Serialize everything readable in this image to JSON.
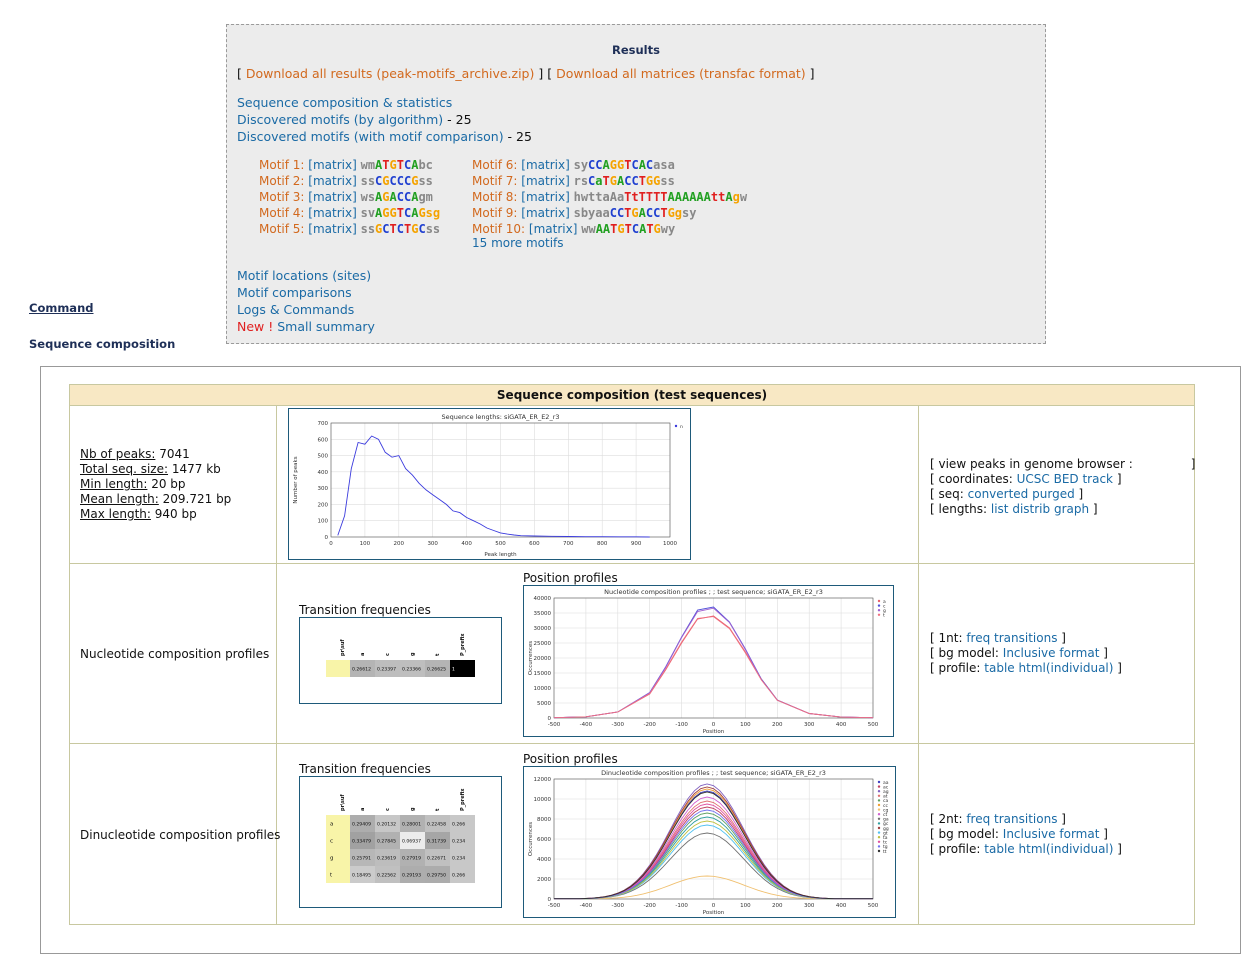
{
  "results": {
    "title": "Results",
    "download_all": "Download all results (peak-motifs_archive.zip)",
    "download_matrices": "Download all matrices (transfac format)",
    "seq_comp": "Sequence composition & statistics",
    "disc_algo": "Discovered motifs (by algorithm)",
    "disc_algo_count": "25",
    "disc_cmp": "Discovered motifs (with motif comparison)",
    "disc_cmp_count": "25",
    "motif_locations": "Motif locations (sites)",
    "motif_comparisons": "Motif comparisons",
    "logs": "Logs & Commands",
    "new_label": "New !",
    "small_summary": "Small summary",
    "more_motifs": "15 more motifs",
    "motifs_left": [
      {
        "label": "Motif 1:",
        "matrix": "[matrix]",
        "seq": [
          [
            "x",
            "wm"
          ],
          [
            "A",
            "A"
          ],
          [
            "T",
            "T"
          ],
          [
            "G",
            "G"
          ],
          [
            "T",
            "T"
          ],
          [
            "C",
            "C"
          ],
          [
            "A",
            "A"
          ],
          [
            "x",
            "bc"
          ]
        ]
      },
      {
        "label": "Motif 2:",
        "matrix": "[matrix]",
        "seq": [
          [
            "x",
            "ss"
          ],
          [
            "C",
            "C"
          ],
          [
            "G",
            "G"
          ],
          [
            "C",
            "C"
          ],
          [
            "C",
            "C"
          ],
          [
            "C",
            "C"
          ],
          [
            "G",
            "G"
          ],
          [
            "x",
            "ss"
          ]
        ]
      },
      {
        "label": "Motif 3:",
        "matrix": "[matrix]",
        "seq": [
          [
            "x",
            "ws"
          ],
          [
            "A",
            "A"
          ],
          [
            "G",
            "G"
          ],
          [
            "A",
            "A"
          ],
          [
            "C",
            "C"
          ],
          [
            "C",
            "C"
          ],
          [
            "A",
            "A"
          ],
          [
            "x",
            "gm"
          ]
        ]
      },
      {
        "label": "Motif 4:",
        "matrix": "[matrix]",
        "seq": [
          [
            "x",
            "sv"
          ],
          [
            "A",
            "A"
          ],
          [
            "G",
            "G"
          ],
          [
            "G",
            "G"
          ],
          [
            "T",
            "T"
          ],
          [
            "C",
            "C"
          ],
          [
            "A",
            "A"
          ],
          [
            "G",
            "Gsg"
          ]
        ]
      },
      {
        "label": "Motif 5:",
        "matrix": "[matrix]",
        "seq": [
          [
            "x",
            "ss"
          ],
          [
            "G",
            "G"
          ],
          [
            "C",
            "C"
          ],
          [
            "T",
            "T"
          ],
          [
            "C",
            "C"
          ],
          [
            "T",
            "T"
          ],
          [
            "G",
            "G"
          ],
          [
            "C",
            "C"
          ],
          [
            "x",
            "ss"
          ]
        ]
      }
    ],
    "motifs_right": [
      {
        "label": "Motif 6:",
        "matrix": "[matrix]",
        "seq": [
          [
            "x",
            "sy"
          ],
          [
            "C",
            "C"
          ],
          [
            "C",
            "C"
          ],
          [
            "A",
            "A"
          ],
          [
            "G",
            "G"
          ],
          [
            "G",
            "G"
          ],
          [
            "T",
            "T"
          ],
          [
            "C",
            "C"
          ],
          [
            "A",
            "A"
          ],
          [
            "C",
            "C"
          ],
          [
            "x",
            "asa"
          ]
        ]
      },
      {
        "label": "Motif 7:",
        "matrix": "[matrix]",
        "seq": [
          [
            "x",
            "rs"
          ],
          [
            "C",
            "C"
          ],
          [
            "A",
            "a"
          ],
          [
            "T",
            "T"
          ],
          [
            "G",
            "G"
          ],
          [
            "A",
            "A"
          ],
          [
            "C",
            "C"
          ],
          [
            "C",
            "C"
          ],
          [
            "T",
            "T"
          ],
          [
            "G",
            "GG"
          ],
          [
            "x",
            "ss"
          ]
        ]
      },
      {
        "label": "Motif 8:",
        "matrix": "[matrix]",
        "seq": [
          [
            "x",
            "hwttaAa"
          ],
          [
            "T",
            "TtTTTT"
          ],
          [
            "A",
            "AAAAAA"
          ],
          [
            "T",
            "tt"
          ],
          [
            "A",
            "A"
          ],
          [
            "G",
            "g"
          ],
          [
            "x",
            "w"
          ]
        ]
      },
      {
        "label": "Motif 9:",
        "matrix": "[matrix]",
        "seq": [
          [
            "x",
            "sbyaa"
          ],
          [
            "C",
            "CC"
          ],
          [
            "T",
            "T"
          ],
          [
            "G",
            "G"
          ],
          [
            "A",
            "A"
          ],
          [
            "C",
            "CC"
          ],
          [
            "T",
            "T"
          ],
          [
            "G",
            "Gg"
          ],
          [
            "x",
            "sy"
          ]
        ]
      },
      {
        "label": "Motif 10:",
        "matrix": "[matrix]",
        "seq": [
          [
            "x",
            "ww"
          ],
          [
            "A",
            "AA"
          ],
          [
            "T",
            "T"
          ],
          [
            "G",
            "G"
          ],
          [
            "T",
            "T"
          ],
          [
            "C",
            "C"
          ],
          [
            "A",
            "A"
          ],
          [
            "T",
            "T"
          ],
          [
            "G",
            "G"
          ],
          [
            "x",
            "wy"
          ]
        ]
      }
    ]
  },
  "side": {
    "command": "Command",
    "seqcomp": "Sequence composition"
  },
  "table": {
    "header": "Sequence composition (test sequences)",
    "stats": [
      {
        "k": "Nb of peaks:",
        "v": " 7041"
      },
      {
        "k": "Total seq. size:",
        "v": " 1477 kb"
      },
      {
        "k": "Min length:",
        "v": " 20 bp"
      },
      {
        "k": "Mean length:",
        "v": " 209.721 bp"
      },
      {
        "k": "Max length:",
        "v": " 940 bp"
      }
    ],
    "row1_links": {
      "l1_pre": "[ view peaks in genome browser :",
      "l1_post": "]",
      "l2_pre": "[ coordinates:",
      "l2_link": "UCSC BED track",
      "l2_post": "]",
      "l3_pre": "[ seq:",
      "l3_link1": "converted",
      "l3_link2": "purged",
      "l3_post": "]",
      "l4_pre": "[ lengths:",
      "l4_link1": "list",
      "l4_link2": "distrib",
      "l4_link3": "graph",
      "l4_post": "]"
    },
    "nuc_label": "Nucleotide composition profiles",
    "dinuc_label": "Dinucleotide composition profiles",
    "trans_freq": "Transition frequencies",
    "pos_profiles": "Position profiles",
    "nuc_links": {
      "l1_pre": "[ 1nt:",
      "l1_link1": "freq",
      "l1_link2": "transitions",
      "l1_post": "]",
      "l2_pre": "[ bg model:",
      "l2_link1": "Inclusive",
      "l2_link2": "format",
      "l2_post": "]",
      "l3_pre": "[ profile:",
      "l3_link1": "table",
      "l3_link2": "html(individual)",
      "l3_post": "]"
    },
    "dinuc_links": {
      "l1_pre": "[ 2nt:",
      "l1_link1": "freq",
      "l1_link2": "transitions",
      "l1_post": "]",
      "l2_pre": "[ bg model:",
      "l2_link1": "Inclusive",
      "l2_link2": "format",
      "l2_post": "]",
      "l3_pre": "[ profile:",
      "l3_link1": "table",
      "l3_link2": "html(individual)",
      "l3_post": "]"
    },
    "nuc_heat": {
      "cols": [
        "a",
        "c",
        "g",
        "t",
        "P_prefix"
      ],
      "corner": "pr\\suf",
      "rows": [
        {
          "label": "",
          "vals": [
            "0.26612",
            "0.23397",
            "0.23366",
            "0.26625",
            "1"
          ]
        }
      ]
    },
    "dinuc_heat": {
      "cols": [
        "a",
        "c",
        "g",
        "t",
        "P_prefix"
      ],
      "corner": "pr\\suf",
      "rows": [
        {
          "label": "a",
          "vals": [
            "0.29409",
            "0.20132",
            "0.28001",
            "0.22458",
            "0.266"
          ]
        },
        {
          "label": "c",
          "vals": [
            "0.33479",
            "0.27845",
            "0.06937",
            "0.31739",
            "0.234"
          ]
        },
        {
          "label": "g",
          "vals": [
            "0.25791",
            "0.23619",
            "0.27919",
            "0.22671",
            "0.234"
          ]
        },
        {
          "label": "t",
          "vals": [
            "0.18495",
            "0.22562",
            "0.29193",
            "0.29750",
            "0.266"
          ]
        }
      ]
    }
  },
  "chart_data": [
    {
      "type": "line",
      "title": "Sequence lengths: siGATA_ER_E2_r3",
      "xlabel": "Peak length",
      "ylabel": "Number of peaks",
      "xlim": [
        0,
        1000
      ],
      "ylim": [
        0,
        700
      ],
      "xticks": [
        0,
        100,
        200,
        300,
        400,
        500,
        600,
        700,
        800,
        900,
        1000
      ],
      "yticks": [
        0,
        100,
        200,
        300,
        400,
        500,
        600,
        700
      ],
      "grid": true,
      "legend": "top-right",
      "series": [
        {
          "name": "n",
          "color": "#3b3bdd",
          "x": [
            20,
            40,
            60,
            80,
            100,
            120,
            140,
            160,
            180,
            200,
            220,
            240,
            260,
            280,
            300,
            320,
            340,
            360,
            380,
            400,
            420,
            440,
            460,
            480,
            500,
            520,
            540,
            560,
            600,
            650,
            700,
            750,
            800,
            850,
            900,
            940
          ],
          "y": [
            10,
            130,
            420,
            580,
            570,
            620,
            600,
            520,
            490,
            500,
            420,
            380,
            330,
            290,
            260,
            230,
            200,
            160,
            150,
            120,
            100,
            80,
            55,
            40,
            25,
            18,
            12,
            8,
            6,
            4,
            3,
            2,
            2,
            1,
            1,
            0
          ]
        }
      ]
    },
    {
      "type": "line",
      "title": "Nucleotide composition profiles ; ; test sequence; siGATA_ER_E2_r3",
      "xlabel": "Position",
      "ylabel": "Occurrences",
      "xlim": [
        -500,
        500
      ],
      "ylim": [
        0,
        40000
      ],
      "xticks": [
        -500,
        -400,
        -300,
        -200,
        -100,
        0,
        100,
        200,
        300,
        400,
        500
      ],
      "yticks": [
        0,
        5000,
        10000,
        15000,
        20000,
        25000,
        30000,
        35000,
        40000
      ],
      "grid": true,
      "legend": "top-right",
      "series": [
        {
          "name": "a",
          "color": "#e8606a",
          "x": [
            -500,
            -400,
            -300,
            -200,
            -150,
            -100,
            -50,
            0,
            50,
            100,
            150,
            200,
            300,
            400,
            500
          ],
          "y": [
            100,
            400,
            2000,
            8000,
            16000,
            25000,
            33000,
            34000,
            30000,
            22000,
            13000,
            6000,
            1500,
            300,
            100
          ]
        },
        {
          "name": "c",
          "color": "#5050d8",
          "x": [
            -500,
            -400,
            -300,
            -200,
            -150,
            -100,
            -50,
            0,
            50,
            100,
            150,
            200,
            300,
            400,
            500
          ],
          "y": [
            100,
            400,
            2000,
            8500,
            17000,
            27000,
            36000,
            37000,
            32000,
            23000,
            13000,
            6000,
            1500,
            300,
            100
          ]
        },
        {
          "name": "g",
          "color": "#a060d0",
          "x": [
            -500,
            -400,
            -300,
            -200,
            -150,
            -100,
            -50,
            0,
            50,
            100,
            150,
            200,
            300,
            400,
            500
          ],
          "y": [
            100,
            400,
            2000,
            8400,
            16800,
            26800,
            35500,
            36600,
            31800,
            22800,
            12800,
            5900,
            1500,
            300,
            100
          ]
        },
        {
          "name": "t",
          "color": "#f07080",
          "x": [
            -500,
            -400,
            -300,
            -200,
            -150,
            -100,
            -50,
            0,
            50,
            100,
            150,
            200,
            300,
            400,
            500
          ],
          "y": [
            100,
            400,
            2000,
            8100,
            16200,
            25300,
            33200,
            33800,
            29800,
            21700,
            12700,
            5900,
            1500,
            300,
            100
          ]
        }
      ]
    },
    {
      "type": "line",
      "title": "Dinucleotide composition profiles ; ; test sequence; siGATA_ER_E2_r3",
      "xlabel": "Position",
      "ylabel": "Occurrences",
      "xlim": [
        -500,
        500
      ],
      "ylim": [
        0,
        12000
      ],
      "xticks": [
        -500,
        -400,
        -300,
        -200,
        -100,
        0,
        100,
        200,
        300,
        400,
        500
      ],
      "yticks": [
        0,
        2000,
        4000,
        6000,
        8000,
        10000,
        12000
      ],
      "grid": true,
      "legend": "top-right",
      "series": [
        {
          "name": "aa",
          "color": "#4040c0",
          "peak": 10800
        },
        {
          "name": "ac",
          "color": "#c04060",
          "peak": 9200
        },
        {
          "name": "ag",
          "color": "#8060c0",
          "peak": 11500
        },
        {
          "name": "at",
          "color": "#e07070",
          "peak": 9800
        },
        {
          "name": "ca",
          "color": "#60a060",
          "peak": 8600
        },
        {
          "name": "cc",
          "color": "#f0a030",
          "peak": 11000
        },
        {
          "name": "cg",
          "color": "#f0c070",
          "peak": 2300
        },
        {
          "name": "ct",
          "color": "#d060d0",
          "peak": 10200
        },
        {
          "name": "ga",
          "color": "#707070",
          "peak": 6600
        },
        {
          "name": "gc",
          "color": "#30a0a0",
          "peak": 8200
        },
        {
          "name": "gg",
          "color": "#a04040",
          "peak": 11200
        },
        {
          "name": "gt",
          "color": "#50c0f0",
          "peak": 7400
        },
        {
          "name": "ta",
          "color": "#c0c040",
          "peak": 7800
        },
        {
          "name": "tc",
          "color": "#e050a0",
          "peak": 9500
        },
        {
          "name": "tg",
          "color": "#7070f0",
          "peak": 8900
        },
        {
          "name": "tt",
          "color": "#303030",
          "peak": 10700
        }
      ]
    }
  ]
}
